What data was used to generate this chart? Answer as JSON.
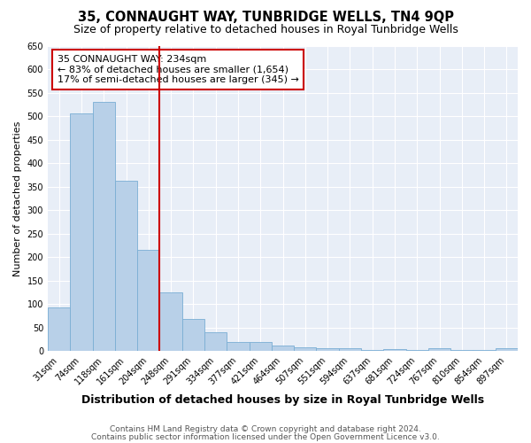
{
  "title": "35, CONNAUGHT WAY, TUNBRIDGE WELLS, TN4 9QP",
  "subtitle": "Size of property relative to detached houses in Royal Tunbridge Wells",
  "xlabel": "Distribution of detached houses by size in Royal Tunbridge Wells",
  "ylabel": "Number of detached properties",
  "categories": [
    "31sqm",
    "74sqm",
    "118sqm",
    "161sqm",
    "204sqm",
    "248sqm",
    "291sqm",
    "334sqm",
    "377sqm",
    "421sqm",
    "464sqm",
    "507sqm",
    "551sqm",
    "594sqm",
    "637sqm",
    "681sqm",
    "724sqm",
    "767sqm",
    "810sqm",
    "854sqm",
    "897sqm"
  ],
  "values": [
    93,
    505,
    530,
    362,
    216,
    125,
    68,
    41,
    20,
    20,
    12,
    8,
    6,
    6,
    3,
    5,
    3,
    6,
    3,
    3,
    7
  ],
  "bar_color": "#b8d0e8",
  "bar_edge_color": "#7aaed4",
  "vline_color": "#cc0000",
  "annotation_text": "35 CONNAUGHT WAY: 234sqm\n← 83% of detached houses are smaller (1,654)\n17% of semi-detached houses are larger (345) →",
  "annotation_box_color": "#cc0000",
  "fig_background": "#ffffff",
  "plot_background": "#e8eef7",
  "grid_color": "#ffffff",
  "footer_line1": "Contains HM Land Registry data © Crown copyright and database right 2024.",
  "footer_line2": "Contains public sector information licensed under the Open Government Licence v3.0.",
  "ylim": [
    0,
    650
  ],
  "yticks": [
    0,
    50,
    100,
    150,
    200,
    250,
    300,
    350,
    400,
    450,
    500,
    550,
    600,
    650
  ],
  "title_fontsize": 10.5,
  "subtitle_fontsize": 9,
  "xlabel_fontsize": 9,
  "ylabel_fontsize": 8,
  "tick_fontsize": 7,
  "footer_fontsize": 6.5,
  "annotation_fontsize": 8
}
